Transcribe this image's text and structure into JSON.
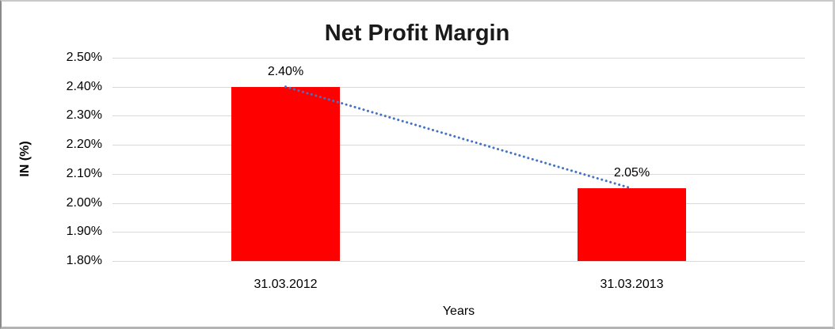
{
  "chart_data": {
    "type": "bar",
    "title": "Net Profit Margin",
    "xlabel": "Years",
    "ylabel": "IN (%)",
    "categories": [
      "31.03.2012",
      "31.03.2013"
    ],
    "values": [
      2.4,
      2.05
    ],
    "data_labels": [
      "2.40%",
      "2.05%"
    ],
    "y_ticks": [
      {
        "label": "2.50%",
        "value": 2.5
      },
      {
        "label": "2.40%",
        "value": 2.4
      },
      {
        "label": "2.30%",
        "value": 2.3
      },
      {
        "label": "2.20%",
        "value": 2.2
      },
      {
        "label": "2.10%",
        "value": 2.1
      },
      {
        "label": "2.00%",
        "value": 2.0
      },
      {
        "label": "1.90%",
        "value": 1.9
      },
      {
        "label": "1.80%",
        "value": 1.8
      }
    ],
    "ylim": [
      1.8,
      2.5
    ],
    "grid": true,
    "legend": "none",
    "colors": {
      "bar": "#ff0000",
      "trendline": "#4472c4",
      "gridline": "#d9d9d9",
      "text": "#000000"
    },
    "trendline": {
      "kind": "linear",
      "style": "dotted",
      "from_value": 2.4,
      "to_value": 2.05
    }
  }
}
